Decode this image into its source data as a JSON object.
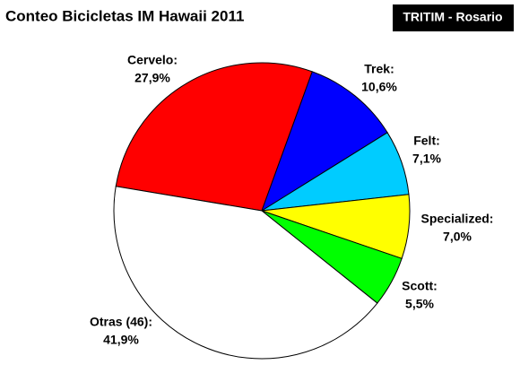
{
  "chart_data": {
    "type": "pie",
    "title": "Conteo Bicicletas IM Hawaii 2011",
    "annotation": "TRITIM - Rosario",
    "categories": [
      "Cervelo:",
      "Trek:",
      "Felt:",
      "Specialized:",
      "Scott:",
      "Otras (46):"
    ],
    "values": [
      27.9,
      10.6,
      7.1,
      7.0,
      5.5,
      41.9
    ],
    "value_labels": [
      "27,9%",
      "10,6%",
      "7,1%",
      "7,0%",
      "5,5%",
      "41,9%"
    ],
    "colors": [
      "#ff0000",
      "#0000ff",
      "#00ccff",
      "#ffff00",
      "#00ff00",
      "#ffffff"
    ]
  }
}
